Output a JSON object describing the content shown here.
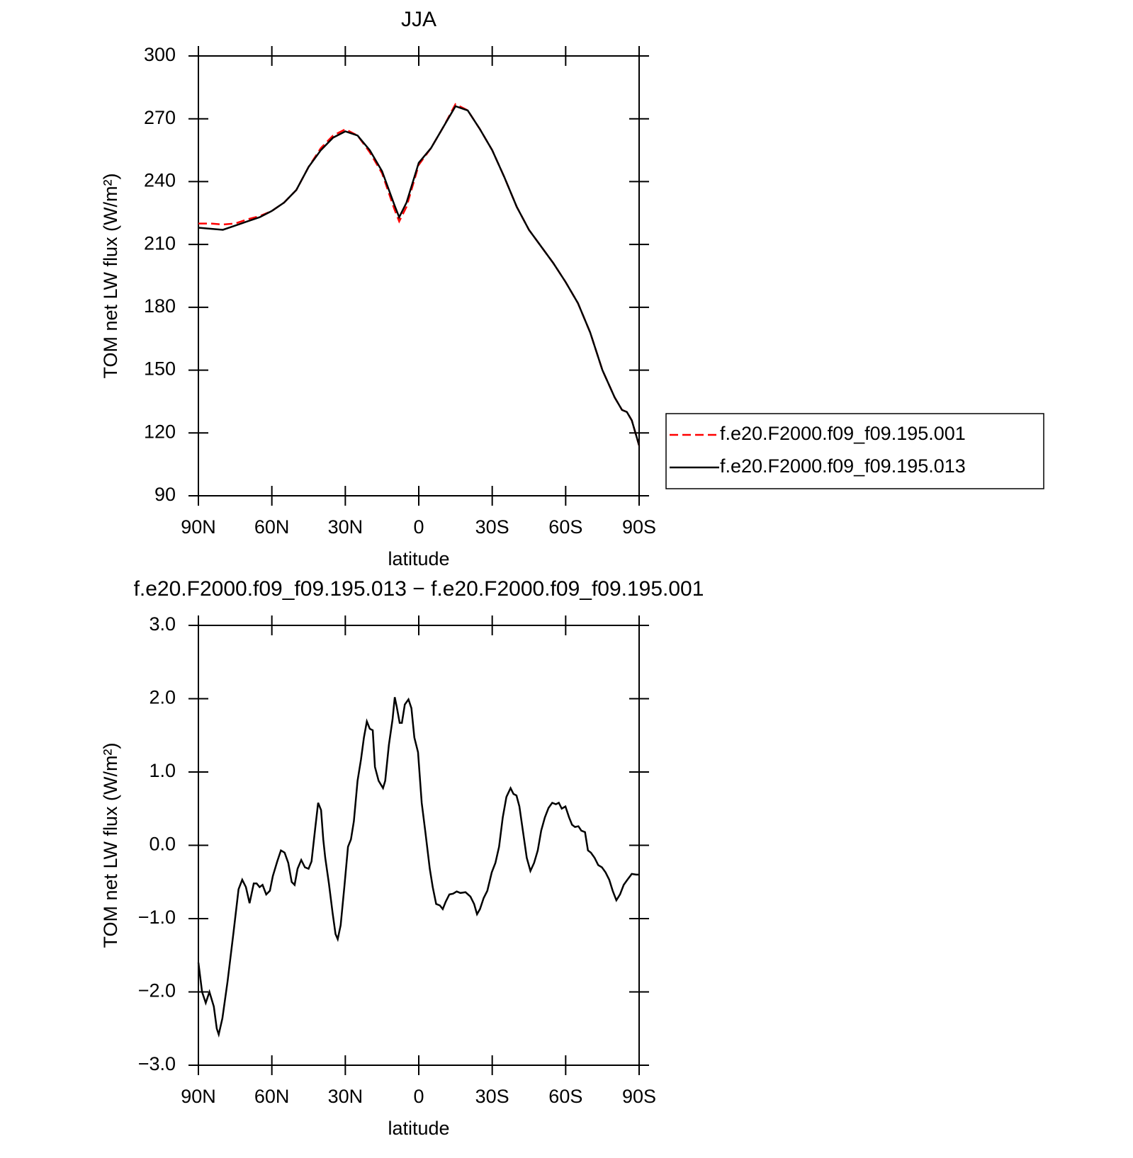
{
  "chart_data": [
    {
      "type": "line",
      "title": "JJA",
      "xlabel": "latitude",
      "ylabel": "TOM net LW flux (W/m²)",
      "x": [
        90,
        85,
        80,
        75,
        70,
        65,
        60,
        55,
        50,
        45,
        40,
        35,
        30,
        25,
        20,
        15,
        10,
        8,
        5,
        0,
        -5,
        -10,
        -15,
        -20,
        -25,
        -30,
        -35,
        -40,
        -45,
        -50,
        -55,
        -60,
        -65,
        -70,
        -75,
        -80,
        -83,
        -85,
        -87,
        -90
      ],
      "series": [
        {
          "name": "f.e20.F2000.f09_f09.195.001",
          "color": "#ff0000",
          "linestyle": "dashed",
          "values": [
            220,
            220,
            219.5,
            220,
            222,
            223.5,
            226,
            230,
            236,
            247,
            256,
            262,
            265,
            262,
            254,
            244,
            227,
            221,
            228,
            248,
            256,
            266,
            277,
            274,
            265,
            255,
            242,
            228,
            217,
            209,
            201,
            192,
            182,
            168,
            150,
            137,
            131,
            130,
            126,
            114
          ]
        },
        {
          "name": "f.e20.F2000.f09_f09.195.013",
          "color": "#000000",
          "linestyle": "solid",
          "values": [
            218,
            217.5,
            217,
            219,
            221,
            223,
            226,
            230,
            236,
            247,
            255,
            261,
            264,
            262,
            255,
            245,
            229,
            223,
            230,
            249,
            256,
            266,
            276,
            274,
            265,
            255,
            242,
            228,
            217,
            209,
            201,
            192,
            182,
            168,
            150,
            137,
            131,
            130,
            126,
            114
          ]
        }
      ],
      "xlim": [
        90,
        -90
      ],
      "xticks": [
        {
          "value": 90,
          "label": "90N"
        },
        {
          "value": 60,
          "label": "60N"
        },
        {
          "value": 30,
          "label": "30N"
        },
        0,
        {
          "value": -30,
          "label": "30S"
        },
        {
          "value": -60,
          "label": "60S"
        },
        {
          "value": -90,
          "label": "90S"
        }
      ],
      "ylim": [
        90,
        300
      ],
      "yticks": [
        90,
        120,
        150,
        180,
        210,
        240,
        270,
        300
      ],
      "legend": "right"
    },
    {
      "type": "line",
      "title": "f.e20.F2000.f09_f09.195.013 − f.e20.F2000.f09_f09.195.001",
      "xlabel": "latitude",
      "ylabel": "TOM net LW flux (W/m²)",
      "x": [
        90,
        88.5,
        87,
        85.5,
        83.7,
        82.5,
        81.7,
        80.2,
        78.1,
        75.7,
        73.6,
        72.1,
        70.6,
        69.1,
        67.4,
        66.2,
        65,
        63.8,
        62.3,
        60.8,
        59.6,
        57.8,
        56.3,
        54.8,
        53.3,
        51.9,
        50.7,
        49.5,
        48,
        46.5,
        45,
        43.8,
        42.3,
        41.1,
        39.9,
        39,
        38.2,
        36.7,
        35.2,
        34,
        33.1,
        31.9,
        30.4,
        28.9,
        27.7,
        26.5,
        25,
        23.6,
        22.4,
        21.2,
        20,
        18.8,
        17.9,
        16.4,
        14.6,
        13.7,
        12.2,
        10.7,
        9.8,
        9,
        7.8,
        6.9,
        5.7,
        4.2,
        3,
        1.8,
        0.3,
        -1.2,
        -2.7,
        -4.5,
        -5.7,
        -7.1,
        -8.6,
        -9.8,
        -11,
        -12.5,
        -14,
        -15.5,
        -17,
        -19.1,
        -21.1,
        -22.6,
        -23.8,
        -25,
        -26.5,
        -28,
        -29.8,
        -31.3,
        -32.8,
        -34.3,
        -35.8,
        -37.5,
        -38.7,
        -39.9,
        -41.1,
        -42.6,
        -44.1,
        -45.6,
        -47.1,
        -48.6,
        -50,
        -51.5,
        -53,
        -54.5,
        -56,
        -57.2,
        -58.4,
        -59.9,
        -61.4,
        -62.6,
        -63.8,
        -65.2,
        -66.4,
        -67.9,
        -69.1,
        -70.3,
        -71.8,
        -73.3,
        -74.8,
        -76.3,
        -77.8,
        -79.2,
        -80.7,
        -82.2,
        -83.7,
        -85.2,
        -87,
        -88.8,
        -90
      ],
      "series": [
        {
          "color": "#000000",
          "linestyle": "solid",
          "values": [
            -1.6,
            -2.0,
            -2.15,
            -2.0,
            -2.2,
            -2.5,
            -2.58,
            -2.36,
            -1.86,
            -1.2,
            -0.6,
            -0.47,
            -0.57,
            -0.79,
            -0.52,
            -0.52,
            -0.57,
            -0.54,
            -0.67,
            -0.62,
            -0.42,
            -0.22,
            -0.07,
            -0.1,
            -0.24,
            -0.5,
            -0.54,
            -0.32,
            -0.2,
            -0.3,
            -0.32,
            -0.22,
            0.23,
            0.58,
            0.48,
            0.08,
            -0.17,
            -0.52,
            -0.92,
            -1.21,
            -1.28,
            -1.09,
            -0.57,
            -0.02,
            0.08,
            0.33,
            0.88,
            1.17,
            1.47,
            1.69,
            1.59,
            1.57,
            1.07,
            0.88,
            0.78,
            0.88,
            1.37,
            1.72,
            2.02,
            1.89,
            1.67,
            1.67,
            1.92,
            1.99,
            1.87,
            1.47,
            1.27,
            0.58,
            0.18,
            -0.32,
            -0.57,
            -0.8,
            -0.82,
            -0.87,
            -0.77,
            -0.67,
            -0.66,
            -0.63,
            -0.65,
            -0.64,
            -0.7,
            -0.8,
            -0.94,
            -0.87,
            -0.72,
            -0.62,
            -0.37,
            -0.24,
            -0.02,
            0.38,
            0.66,
            0.78,
            0.7,
            0.68,
            0.53,
            0.18,
            -0.17,
            -0.35,
            -0.24,
            -0.07,
            0.2,
            0.38,
            0.51,
            0.58,
            0.56,
            0.58,
            0.5,
            0.53,
            0.38,
            0.28,
            0.25,
            0.26,
            0.2,
            0.18,
            -0.07,
            -0.1,
            -0.17,
            -0.27,
            -0.3,
            -0.37,
            -0.47,
            -0.62,
            -0.75,
            -0.67,
            -0.54,
            -0.47,
            -0.39,
            -0.4,
            -0.4
          ]
        }
      ],
      "xlim": [
        90,
        -90
      ],
      "xticks": [
        {
          "value": 90,
          "label": "90N"
        },
        {
          "value": 60,
          "label": "60N"
        },
        {
          "value": 30,
          "label": "30N"
        },
        0,
        {
          "value": -30,
          "label": "30S"
        },
        {
          "value": -60,
          "label": "60S"
        },
        {
          "value": -90,
          "label": "90S"
        }
      ],
      "ylim": [
        -3,
        3
      ],
      "yticks": [
        {
          "value": -3,
          "label": "−3.0"
        },
        {
          "value": -2,
          "label": "−2.0"
        },
        {
          "value": -1,
          "label": "−1.0"
        },
        {
          "value": 0,
          "label": "0.0"
        },
        {
          "value": 1,
          "label": "1.0"
        },
        {
          "value": 2,
          "label": "2.0"
        },
        {
          "value": 3,
          "label": "3.0"
        }
      ]
    }
  ]
}
